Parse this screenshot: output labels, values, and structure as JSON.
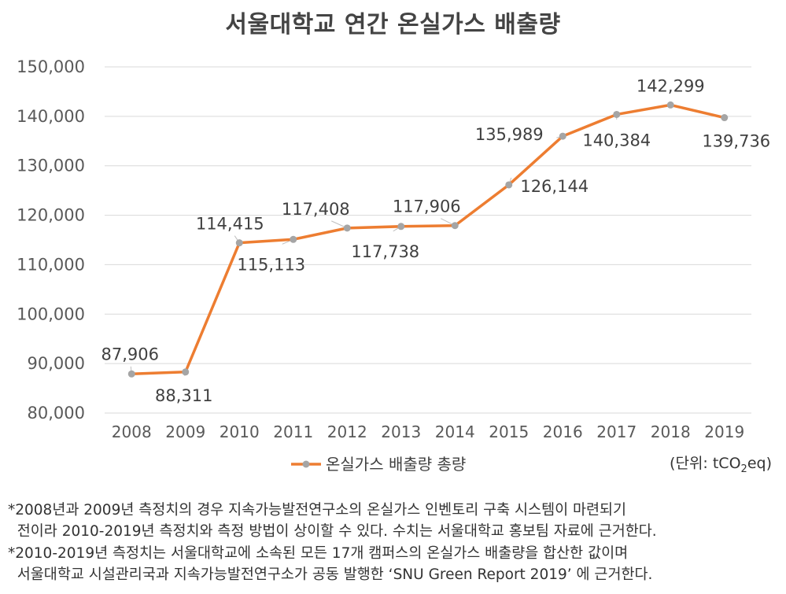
{
  "chart_data": {
    "type": "line",
    "title": "서울대학교 연간 온실가스 배출량",
    "categories": [
      "2008",
      "2009",
      "2010",
      "2011",
      "2012",
      "2013",
      "2014",
      "2015",
      "2016",
      "2017",
      "2018",
      "2019"
    ],
    "series": [
      {
        "name": "온실가스 배출량 총량",
        "values": [
          87906,
          88311,
          114415,
          115113,
          117408,
          117738,
          117906,
          126144,
          135989,
          140384,
          142299,
          139736
        ],
        "color": "#ed7d31",
        "marker_color": "#a5a5a5"
      }
    ],
    "data_labels": [
      "87,906",
      "88,311",
      "114,415",
      "115,113",
      "117,408",
      "117,738",
      "117,906",
      "126,144",
      "135,989",
      "140,384",
      "142,299",
      "139,736"
    ],
    "ylim": [
      80000,
      150000
    ],
    "yticks": [
      80000,
      90000,
      100000,
      110000,
      120000,
      130000,
      140000,
      150000
    ],
    "ytick_labels": [
      "80,000",
      "90,000",
      "100,000",
      "110,000",
      "120,000",
      "130,000",
      "140,000",
      "150,000"
    ],
    "grid": true,
    "legend_position": "bottom-left"
  },
  "unit": {
    "prefix": "(단위: tCO",
    "sub": "2",
    "suffix": "eq)"
  },
  "footnotes": [
    "*2008년과 2009년 측정치의 경우 지속가능발전연구소의 온실가스 인벤토리 구축 시스템이 마련되기\n  전이라 2010-2019년 측정치와 측정 방법이 상이할 수 있다. 수치는 서울대학교 홍보팀 자료에 근거한다.",
    "*2010-2019년 측정치는 서울대학교에 소속된 모든 17개 캠퍼스의 온실가스 배출량을 합산한 값이며\n  서울대학교 시설관리국과 지속가능발전연구소가 공동 발행한 ‘SNU Green Report 2019’ 에 근거한다."
  ]
}
